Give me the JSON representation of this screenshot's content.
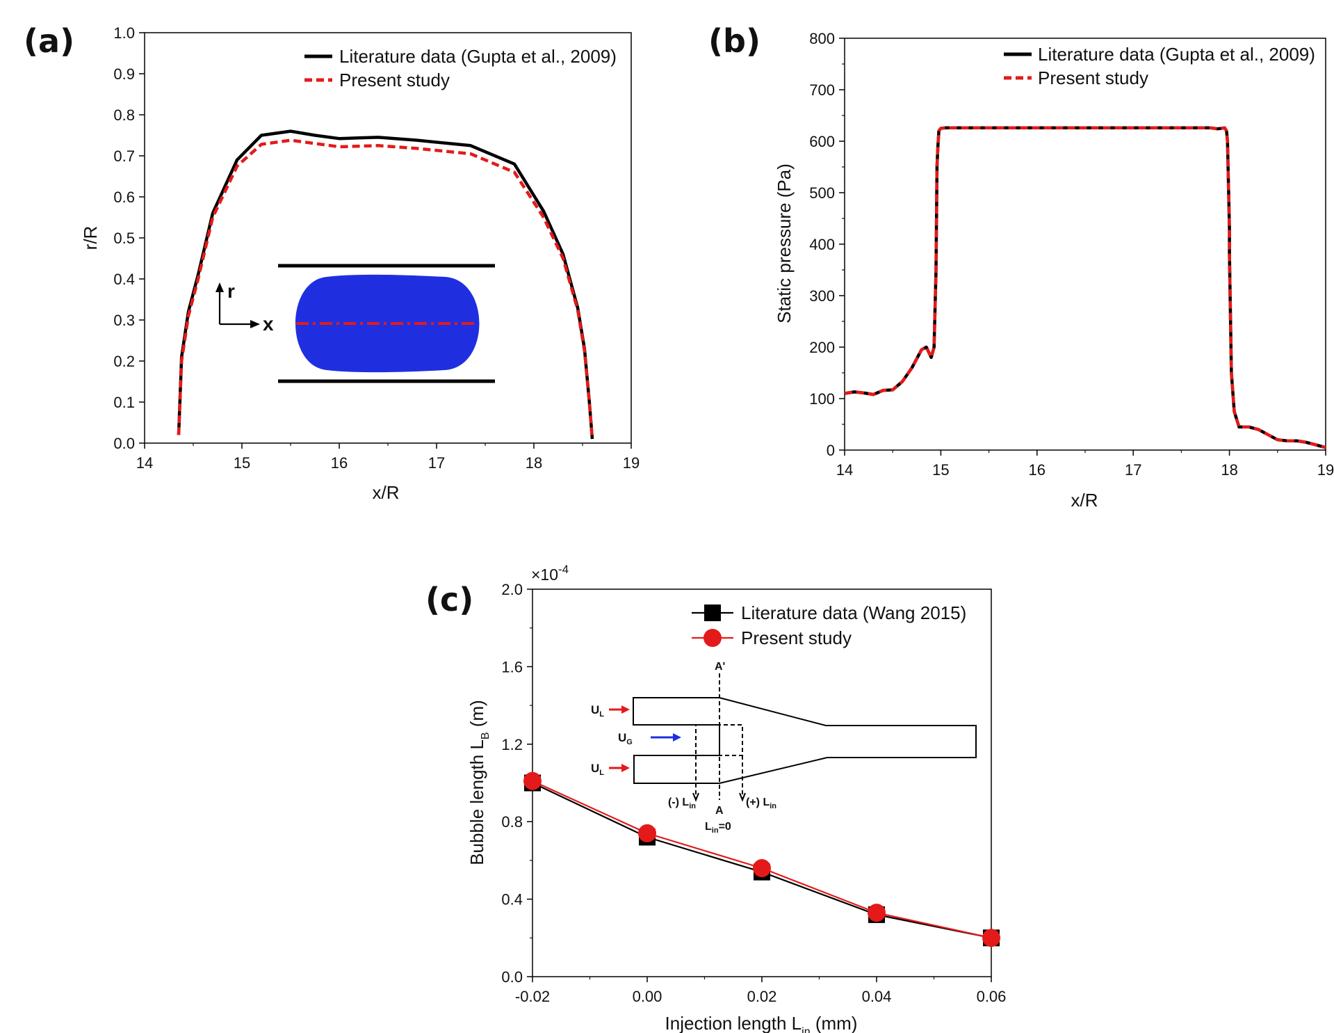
{
  "chart_data": [
    {
      "panel": "(a)",
      "type": "line",
      "xlabel": "x/R",
      "ylabel": "r/R",
      "xlim": [
        14,
        19
      ],
      "ylim": [
        0.0,
        1.0
      ],
      "xticks": [
        "14",
        "15",
        "16",
        "17",
        "18",
        "19"
      ],
      "yticks": [
        "0.0",
        "0.1",
        "0.2",
        "0.3",
        "0.4",
        "0.5",
        "0.6",
        "0.7",
        "0.8",
        "0.9",
        "1.0"
      ],
      "legend_position": "top-right",
      "series": [
        {
          "name": "Literature data (Gupta et al., 2009)",
          "color": "#000000",
          "style": "solid",
          "x": [
            14.35,
            14.38,
            14.45,
            14.55,
            14.7,
            14.95,
            15.2,
            15.5,
            15.75,
            16.0,
            16.4,
            16.8,
            17.35,
            17.8,
            18.1,
            18.3,
            18.45,
            18.52,
            18.57,
            18.6
          ],
          "y": [
            0.02,
            0.21,
            0.32,
            0.41,
            0.56,
            0.69,
            0.75,
            0.76,
            0.75,
            0.742,
            0.745,
            0.738,
            0.725,
            0.68,
            0.565,
            0.46,
            0.33,
            0.23,
            0.1,
            0.01
          ]
        },
        {
          "name": "Present study",
          "color": "#e41a1a",
          "style": "dashed",
          "x": [
            14.35,
            14.38,
            14.45,
            14.55,
            14.7,
            14.95,
            15.2,
            15.5,
            15.75,
            16.0,
            16.4,
            16.8,
            17.35,
            17.8,
            18.1,
            18.3,
            18.45,
            18.52,
            18.57,
            18.6
          ],
          "y": [
            0.02,
            0.2,
            0.31,
            0.4,
            0.55,
            0.675,
            0.728,
            0.738,
            0.73,
            0.722,
            0.725,
            0.718,
            0.705,
            0.66,
            0.55,
            0.45,
            0.325,
            0.225,
            0.1,
            0.01
          ]
        }
      ]
    },
    {
      "panel": "(b)",
      "type": "line",
      "xlabel": "x/R",
      "ylabel": "Static pressure (Pa)",
      "xlim": [
        14,
        19
      ],
      "ylim": [
        0,
        800
      ],
      "xticks": [
        "14",
        "15",
        "16",
        "17",
        "18",
        "19"
      ],
      "yticks": [
        "0",
        "100",
        "200",
        "300",
        "400",
        "500",
        "600",
        "700",
        "800"
      ],
      "legend_position": "top-right",
      "series": [
        {
          "name": "Literature data (Gupta et al., 2009)",
          "color": "#000000",
          "style": "solid",
          "x": [
            14.0,
            14.1,
            14.2,
            14.3,
            14.4,
            14.5,
            14.6,
            14.7,
            14.8,
            14.85,
            14.9,
            14.93,
            14.95,
            14.96,
            14.97,
            14.98,
            15.0,
            15.05,
            15.2,
            15.5,
            16.0,
            16.5,
            17.0,
            17.5,
            17.8,
            17.88,
            17.95,
            17.97,
            17.98,
            18.0,
            18.0,
            18.02,
            18.05,
            18.1,
            18.2,
            18.3,
            18.4,
            18.5,
            18.6,
            18.7,
            18.8,
            18.9,
            19.0
          ],
          "y": [
            110,
            113,
            111,
            108,
            116,
            117,
            133,
            160,
            195,
            200,
            180,
            200,
            350,
            550,
            590,
            620,
            625,
            626,
            626,
            626,
            626,
            626,
            626,
            626,
            626,
            624,
            626,
            620,
            600,
            430,
            380,
            150,
            75,
            45,
            45,
            40,
            30,
            20,
            18,
            18,
            15,
            10,
            5
          ]
        },
        {
          "name": "Present study",
          "color": "#e41a1a",
          "style": "dashed",
          "x": [
            14.0,
            14.1,
            14.2,
            14.3,
            14.4,
            14.5,
            14.6,
            14.7,
            14.8,
            14.85,
            14.9,
            14.93,
            14.95,
            14.96,
            14.97,
            14.98,
            15.0,
            15.05,
            15.2,
            15.5,
            16.0,
            16.5,
            17.0,
            17.5,
            17.8,
            17.88,
            17.95,
            17.97,
            17.98,
            18.0,
            18.0,
            18.02,
            18.05,
            18.1,
            18.2,
            18.3,
            18.4,
            18.5,
            18.6,
            18.7,
            18.8,
            18.9,
            19.0
          ],
          "y": [
            110,
            113,
            111,
            108,
            116,
            117,
            133,
            160,
            195,
            200,
            180,
            200,
            350,
            550,
            590,
            620,
            625,
            626,
            626,
            626,
            626,
            626,
            626,
            626,
            626,
            624,
            626,
            620,
            600,
            430,
            380,
            150,
            75,
            45,
            45,
            40,
            30,
            20,
            18,
            18,
            15,
            10,
            5
          ]
        }
      ]
    },
    {
      "panel": "(c)",
      "type": "line",
      "xlabel": "Injection length  L",
      "xlabel_sub": "in",
      "xlabel_unit": " (mm)",
      "ylabel": "Bubble length L",
      "ylabel_sub": "B",
      "ylabel_unit": " (m)",
      "multiplier": "×10",
      "multiplier_exp": "-4",
      "xlim": [
        -0.02,
        0.06
      ],
      "ylim": [
        0.0,
        2.0
      ],
      "xticks": [
        "-0.02",
        "0.00",
        "0.02",
        "0.04",
        "0.06"
      ],
      "yticks": [
        "0.0",
        "0.4",
        "0.8",
        "1.2",
        "1.6",
        "2.0"
      ],
      "legend_position": "top-right",
      "series": [
        {
          "name": "Literature data (Wang 2015)",
          "color": "#000000",
          "marker": "square",
          "x": [
            -0.02,
            0.0,
            0.02,
            0.04,
            0.06
          ],
          "y": [
            1.0,
            0.72,
            0.54,
            0.32,
            0.2
          ]
        },
        {
          "name": "Present study",
          "color": "#e41a1a",
          "marker": "circle",
          "x": [
            -0.02,
            0.0,
            0.02,
            0.04,
            0.06
          ],
          "y": [
            1.01,
            0.74,
            0.56,
            0.33,
            0.2
          ]
        }
      ]
    }
  ],
  "inset_a": {
    "axis_r": "r",
    "axis_x": "x",
    "bubble_color": "#1f2fe0",
    "centerline_color": "#e41a1a"
  },
  "inset_c": {
    "ul_top": "U",
    "ul_top_sub": "L",
    "ug": "U",
    "ug_sub": "G",
    "ul_bottom": "U",
    "ul_bottom_sub": "L",
    "a_prime": "A'",
    "a": "A",
    "neg_lin": "(-) L",
    "neg_lin_sub": "in",
    "pos_lin": "(+) L",
    "pos_lin_sub": "in",
    "lin0": "L",
    "lin0_sub": "in",
    "lin0_tail": "=0",
    "liquid_arrow_color": "#e41a1a",
    "gas_arrow_color": "#1f2fe0"
  }
}
